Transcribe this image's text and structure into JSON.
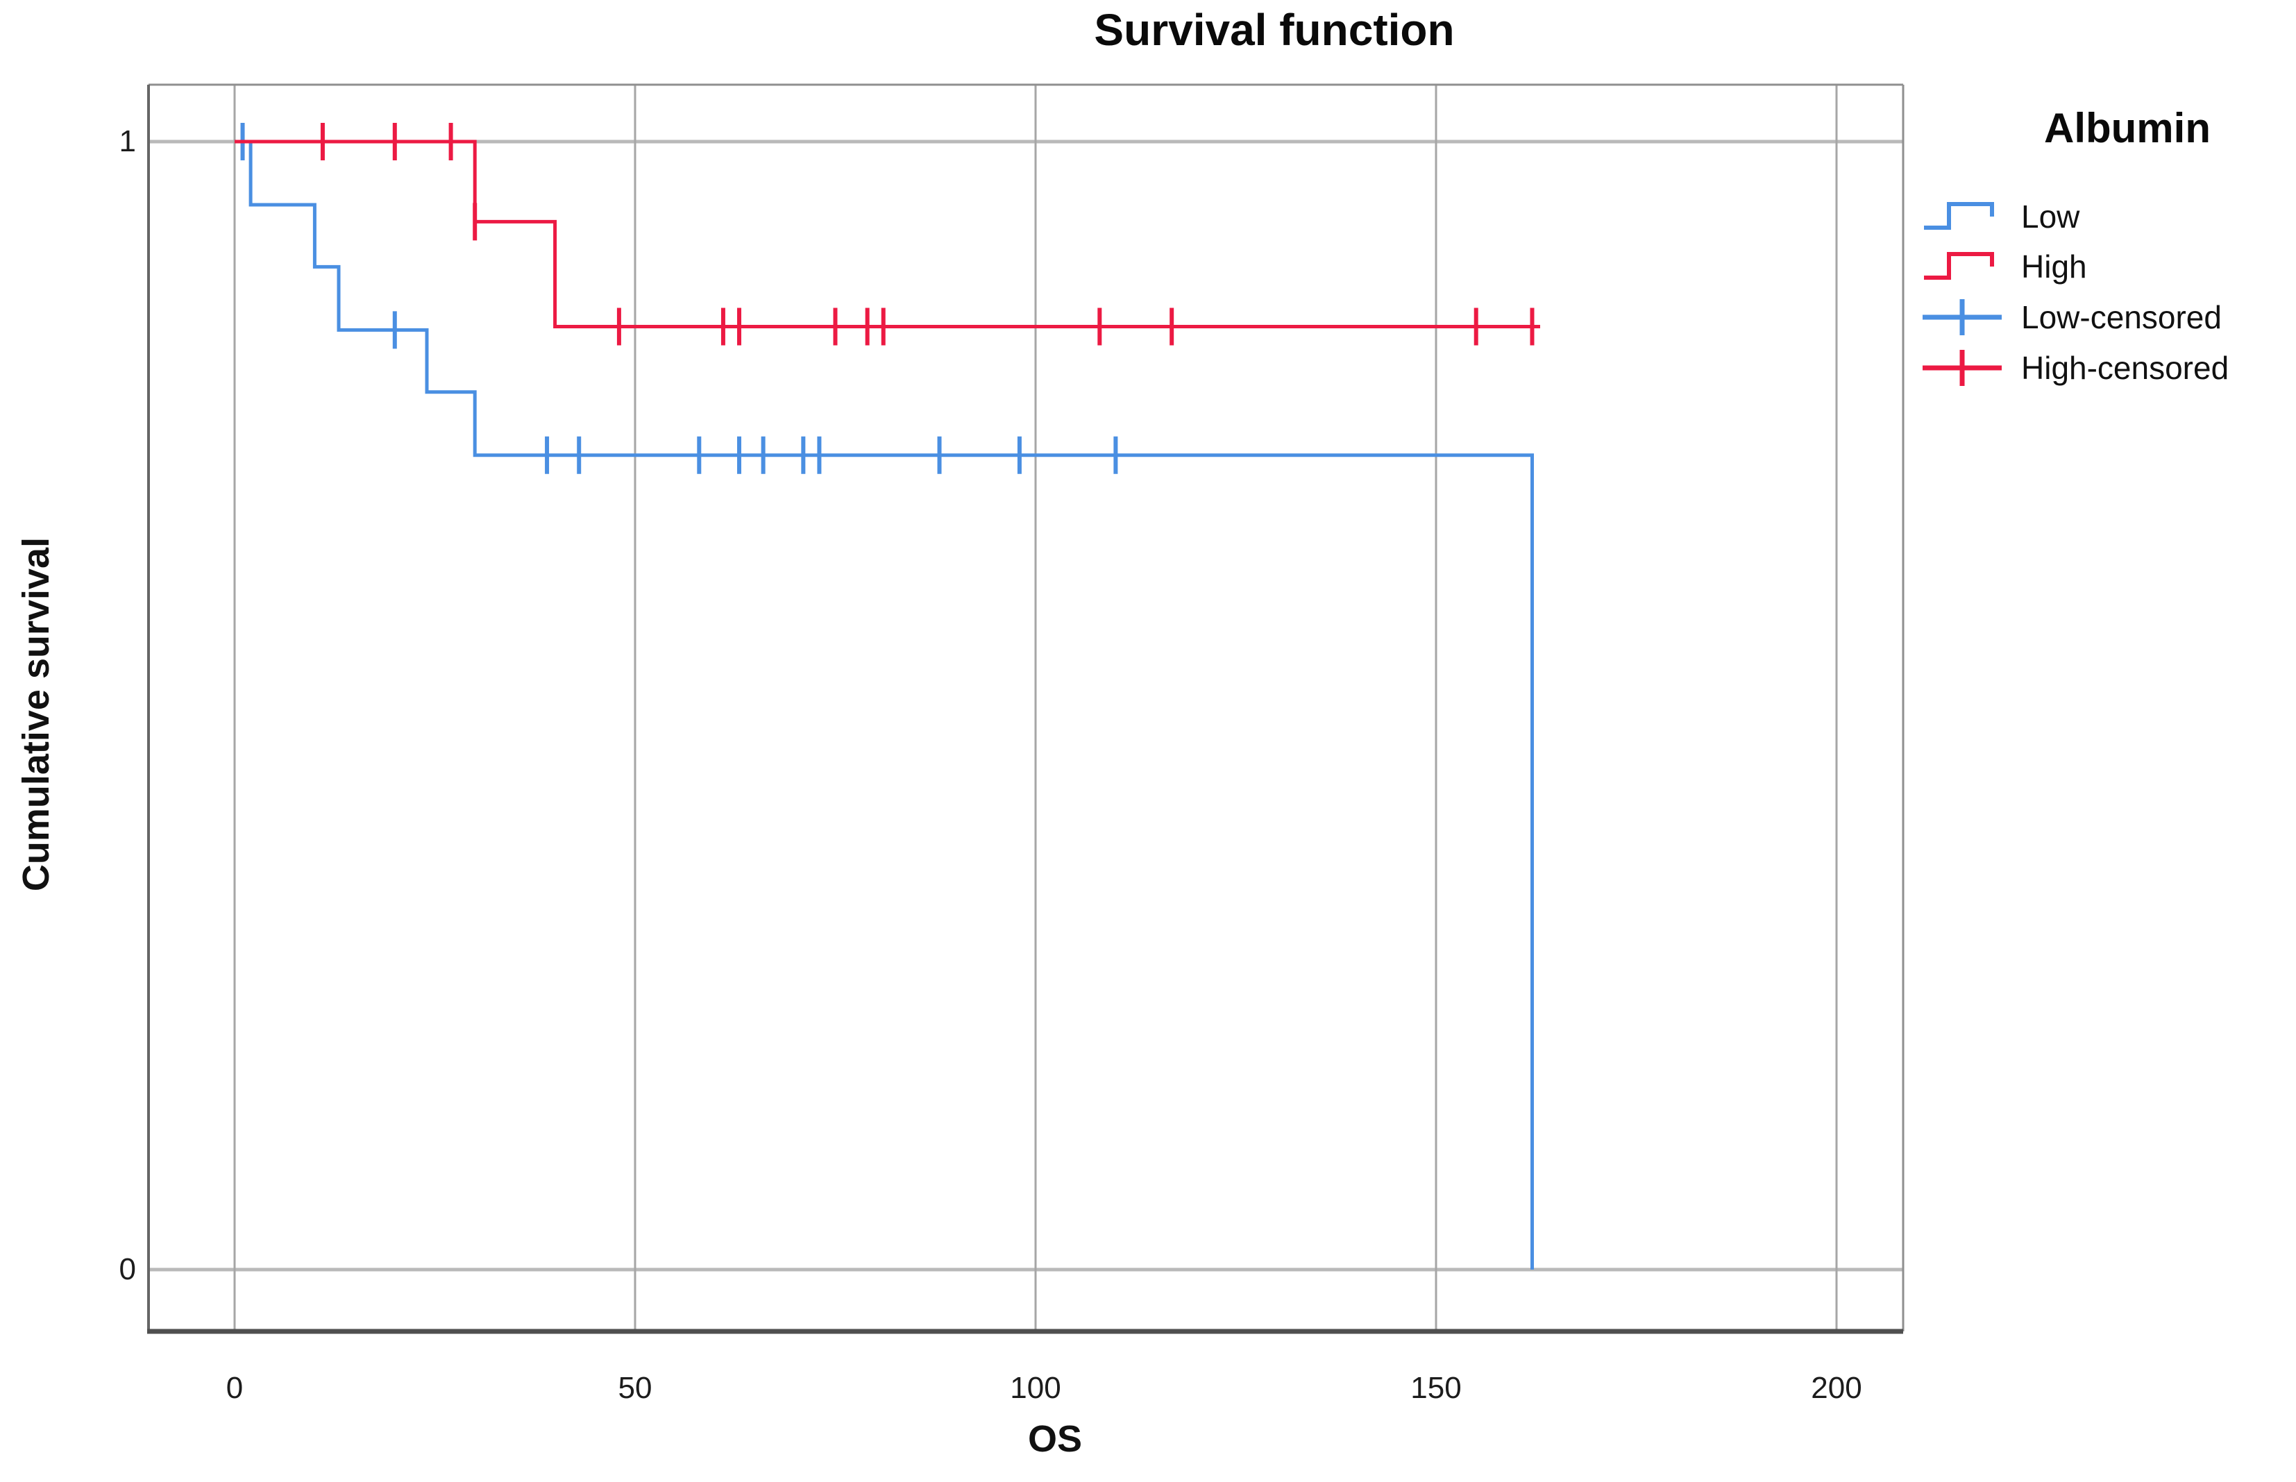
{
  "title": "Survival function",
  "x_axis": {
    "label": "OS",
    "tick_labels": [
      "0",
      "50",
      "100",
      "150",
      "200"
    ],
    "tick_values": [
      0,
      50,
      100,
      150,
      200
    ]
  },
  "y_axis": {
    "label": "Cumulative survival",
    "tick_labels": [
      "1",
      "0"
    ],
    "tick_values": [
      1,
      0
    ]
  },
  "legend": {
    "title": "Albumin",
    "entries": [
      {
        "label": "Low",
        "type": "step",
        "color_key": "blue"
      },
      {
        "label": "High",
        "type": "step",
        "color_key": "red"
      },
      {
        "label": "Low-censored",
        "type": "censor",
        "color_key": "blue"
      },
      {
        "label": "High-censored",
        "type": "censor",
        "color_key": "red"
      }
    ]
  },
  "colors": {
    "blue": "#4a8fe2",
    "red": "#ec1a43",
    "grid_horizontal": "#b9b9b9",
    "grid_vertical": "#a6a6a6",
    "frame": "#8f8f8f",
    "frame_left": "#666666",
    "frame_bottom": "#4f4f4f",
    "text": "#111111"
  },
  "chart_data": {
    "type": "line",
    "subtype": "kaplan-meier-step",
    "title": "Survival function",
    "xlabel": "OS",
    "ylabel": "Cumulative survival",
    "xlim": [
      0,
      200
    ],
    "ylim": [
      0,
      1
    ],
    "grid": true,
    "legend_position": "right",
    "series": [
      {
        "name": "Low",
        "color_key": "blue",
        "steps": [
          [
            0,
            1
          ],
          [
            2,
            1
          ],
          [
            2,
            0.944
          ],
          [
            10,
            0.944
          ],
          [
            10,
            0.889
          ],
          [
            13,
            0.889
          ],
          [
            13,
            0.833
          ],
          [
            24,
            0.833
          ],
          [
            24,
            0.778
          ],
          [
            30,
            0.778
          ],
          [
            30,
            0.722
          ],
          [
            162,
            0.722
          ],
          [
            162,
            0
          ]
        ],
        "censored": [
          [
            1,
            1
          ],
          [
            20,
            0.833
          ],
          [
            39,
            0.722
          ],
          [
            43,
            0.722
          ],
          [
            58,
            0.722
          ],
          [
            63,
            0.722
          ],
          [
            66,
            0.722
          ],
          [
            71,
            0.722
          ],
          [
            73,
            0.722
          ],
          [
            88,
            0.722
          ],
          [
            98,
            0.722
          ],
          [
            110,
            0.722
          ]
        ]
      },
      {
        "name": "High",
        "color_key": "red",
        "steps": [
          [
            0,
            1
          ],
          [
            30,
            1
          ],
          [
            30,
            0.929
          ],
          [
            40,
            0.929
          ],
          [
            40,
            0.836
          ],
          [
            163,
            0.836
          ]
        ],
        "censored": [
          [
            11,
            1
          ],
          [
            20,
            1
          ],
          [
            27,
            1
          ],
          [
            30,
            0.929
          ],
          [
            48,
            0.836
          ],
          [
            61,
            0.836
          ],
          [
            63,
            0.836
          ],
          [
            75,
            0.836
          ],
          [
            79,
            0.836
          ],
          [
            81,
            0.836
          ],
          [
            108,
            0.836
          ],
          [
            117,
            0.836
          ],
          [
            155,
            0.836
          ],
          [
            162,
            0.836
          ]
        ]
      }
    ]
  }
}
